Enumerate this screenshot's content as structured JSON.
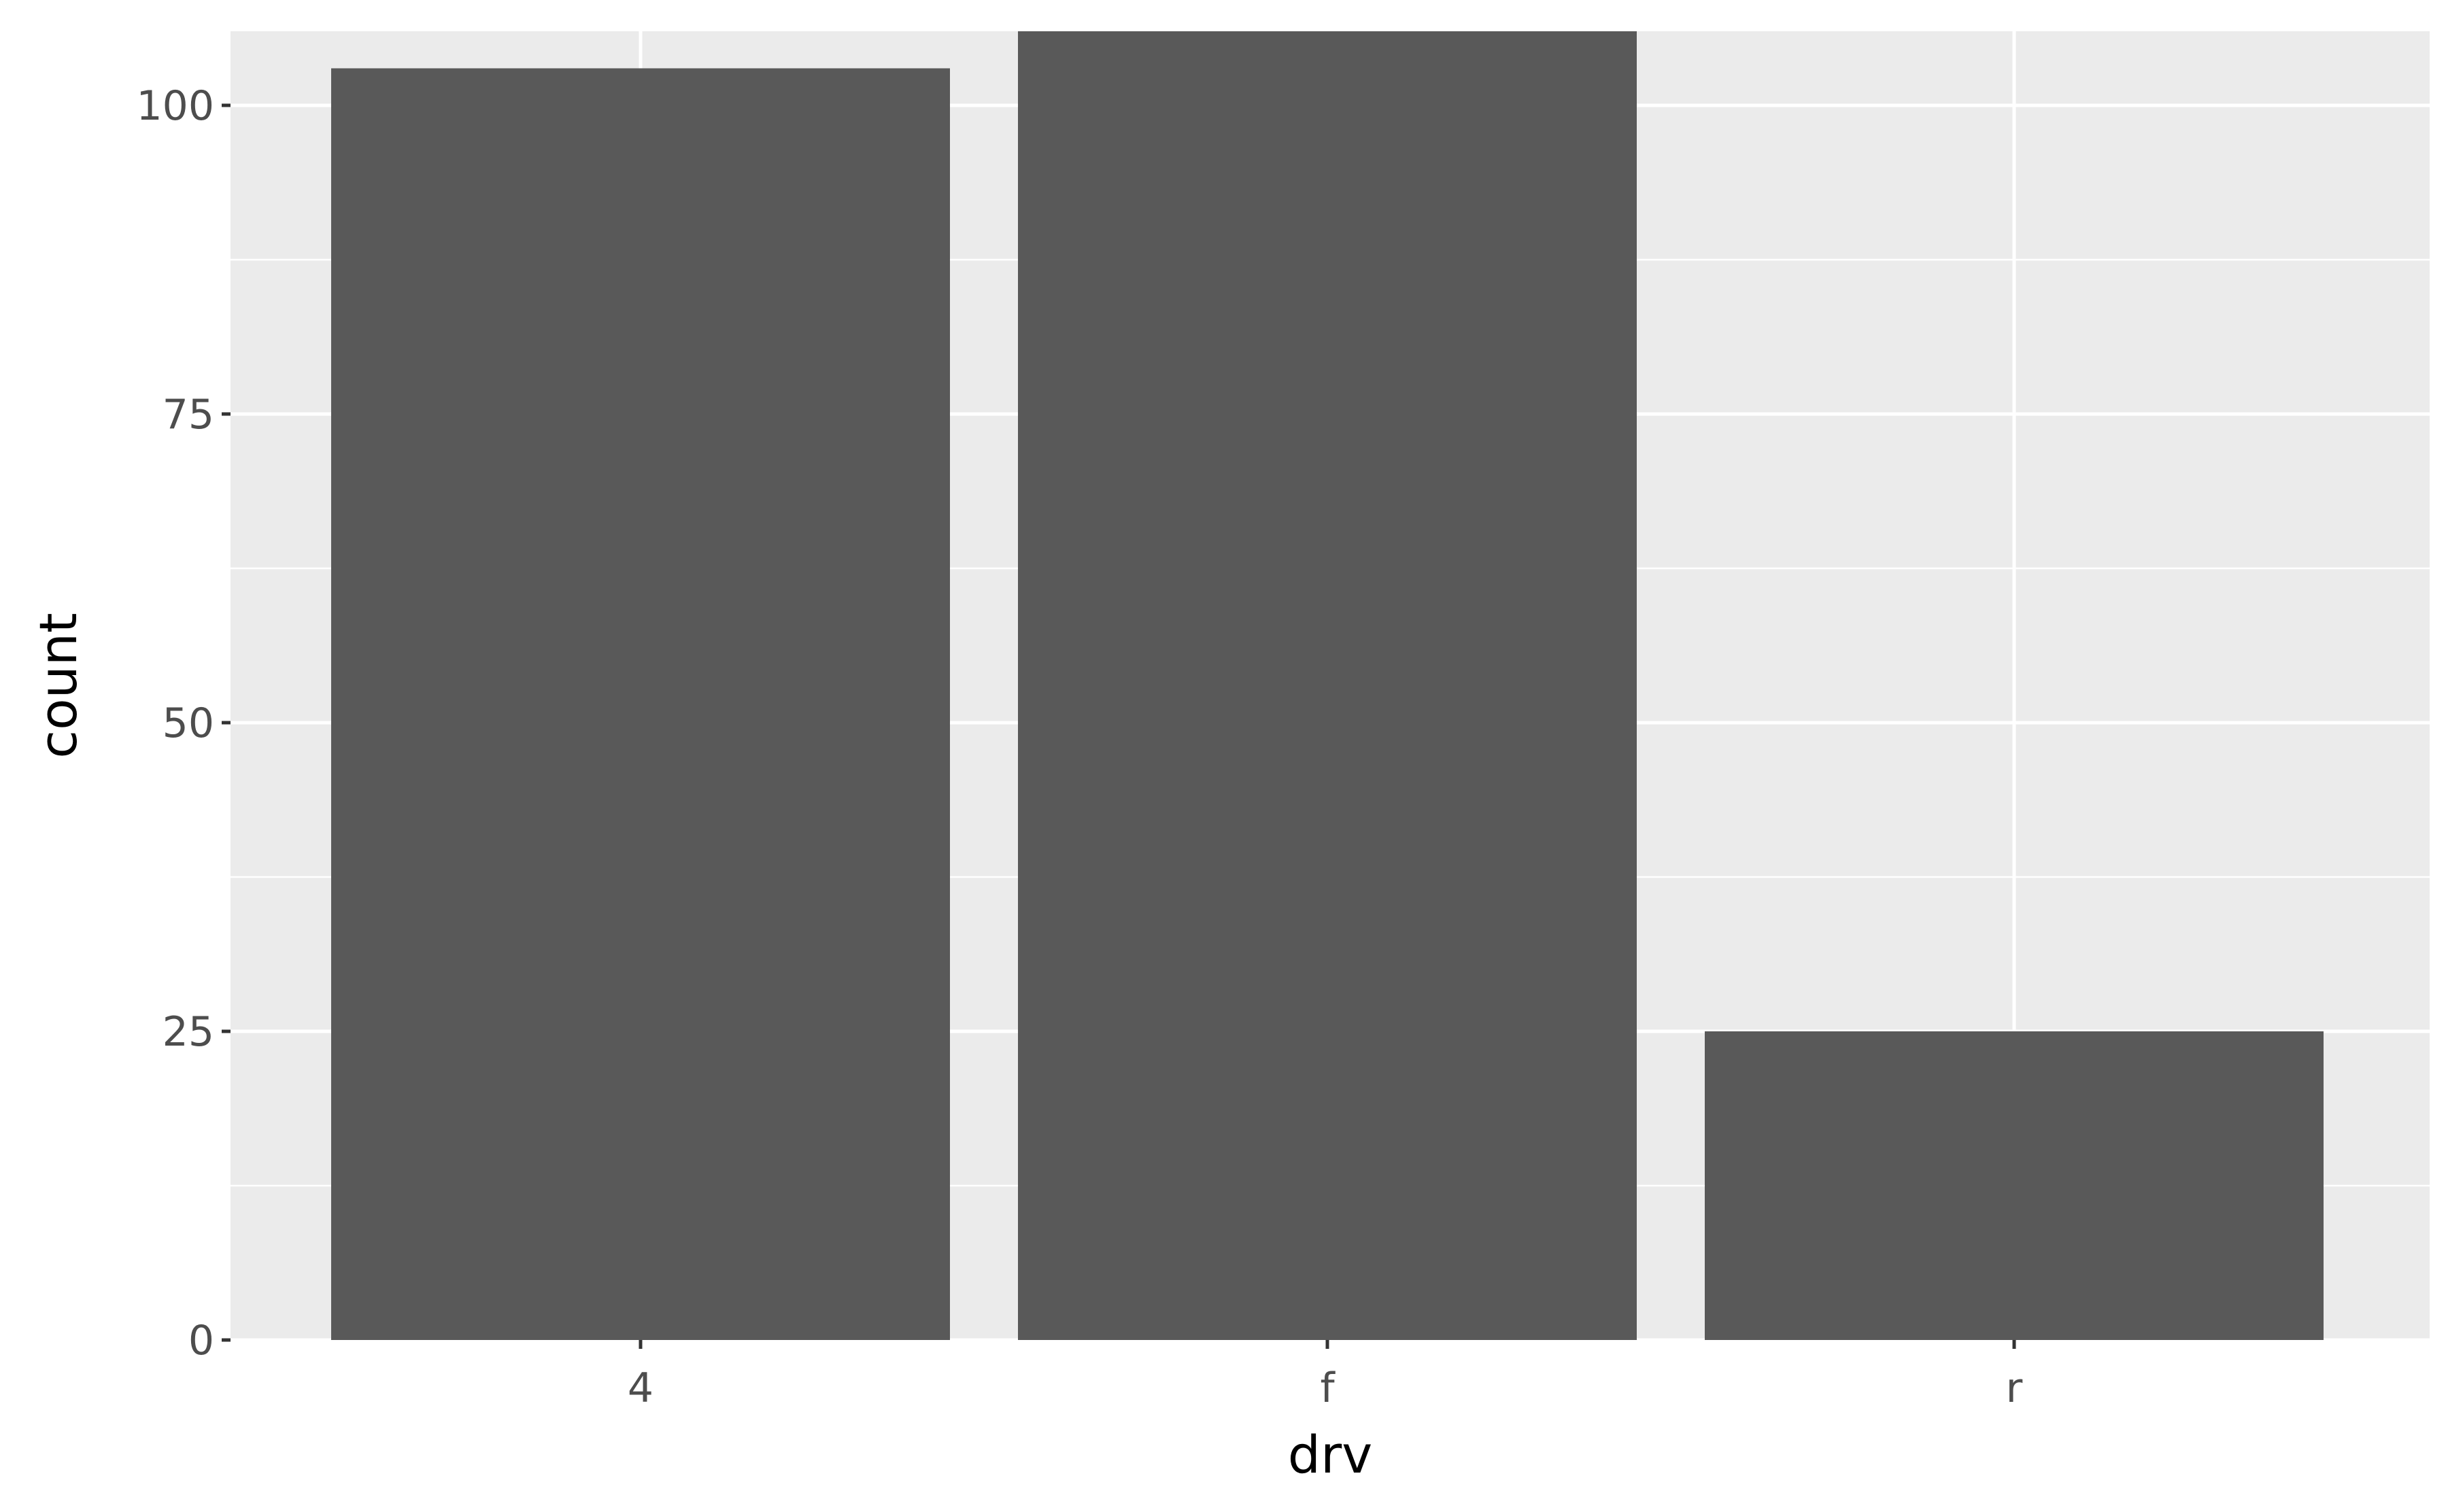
{
  "chart_data": {
    "type": "bar",
    "categories": [
      "4",
      "f",
      "r"
    ],
    "values": [
      103,
      106,
      25
    ],
    "title": "",
    "xlabel": "drv",
    "ylabel": "count",
    "ylim": [
      0,
      106
    ],
    "yticks": [
      0,
      25,
      50,
      75,
      100
    ],
    "grid": true,
    "legend": "none"
  },
  "colors": {
    "panel_background": "#EBEBEB",
    "grid_line": "#FFFFFF",
    "bar_fill": "#595959",
    "tick_mark": "#333333",
    "tick_label": "#4D4D4D",
    "axis_title": "#000000"
  }
}
